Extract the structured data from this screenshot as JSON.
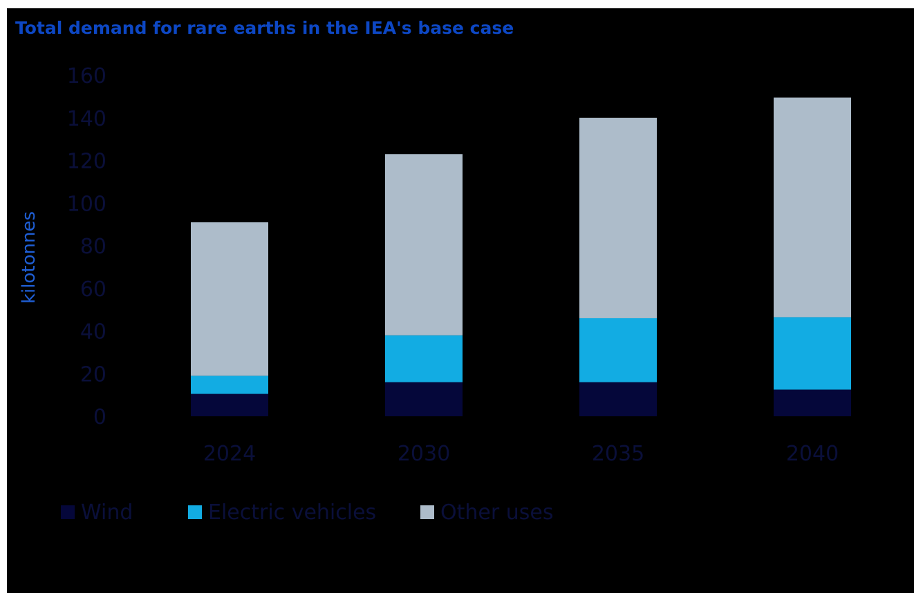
{
  "chart_data": {
    "type": "bar",
    "stacked": true,
    "title": "Total demand for rare earths in the IEA's base case",
    "ylabel": "kilotonnes",
    "xlabel": "",
    "categories": [
      "2024",
      "2030",
      "2035",
      "2040"
    ],
    "ylim": [
      0,
      160
    ],
    "yticks": [
      0,
      20,
      40,
      60,
      80,
      100,
      120,
      140,
      160
    ],
    "series": [
      {
        "name": "Wind",
        "color": "#05073a",
        "values": [
          10.5,
          16,
          16,
          12.5
        ]
      },
      {
        "name": "Electric vehicles",
        "color": "#12ace3",
        "values": [
          8.5,
          22,
          30,
          34
        ]
      },
      {
        "name": "Other uses",
        "color": "#adbcca",
        "values": [
          72,
          85,
          94,
          103
        ]
      }
    ],
    "grid": false,
    "legend_position": "bottom-left"
  }
}
